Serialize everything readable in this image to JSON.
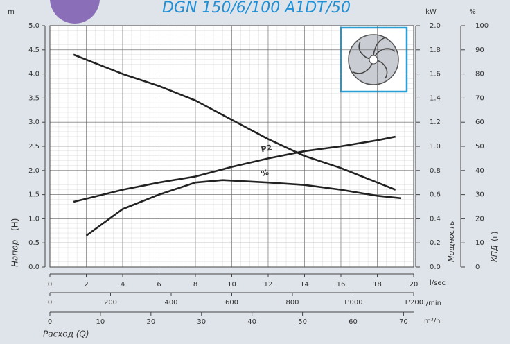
{
  "chart_data": {
    "type": "line",
    "title": "DGN 150/6/100 A1DT/50",
    "y_unit": "m",
    "y2_unit": "kW",
    "y3_unit": "%",
    "x_unit": "l/sec",
    "x2_unit": "l/min",
    "x3_unit": "m³/h",
    "ylabel": "Напор",
    "ylabel_symbol": "(H)",
    "y2label": "Мощность",
    "y3label": "КПД",
    "y3label_symbol": "(г)",
    "xlabel": "Расход (Q)",
    "xlim": [
      0,
      20
    ],
    "xticks": [
      0,
      2,
      4,
      6,
      8,
      10,
      12,
      14,
      16,
      18,
      20
    ],
    "x2lim": [
      0,
      1200
    ],
    "x2ticks": [
      0,
      200,
      400,
      600,
      800,
      {
        "value": 1000,
        "label": "1'000"
      },
      {
        "value": 1200,
        "label": "1'200"
      }
    ],
    "x3lim": [
      0,
      72
    ],
    "x3ticks": [
      0,
      10,
      20,
      30,
      40,
      50,
      60,
      70
    ],
    "ylim": [
      0,
      5
    ],
    "yticks": [
      {
        "value": 0,
        "label": "0.0"
      },
      0.5,
      {
        "value": 1,
        "label": "1.0"
      },
      1.5,
      {
        "value": 2,
        "label": "2.0"
      },
      2.5,
      {
        "value": 3,
        "label": "3.0"
      },
      3.5,
      {
        "value": 4,
        "label": "4.0"
      },
      4.5,
      {
        "value": 5,
        "label": "5.0"
      }
    ],
    "y2lim": [
      0,
      2
    ],
    "y2ticks": [
      {
        "value": 0,
        "label": "0.0"
      },
      0.2,
      0.4,
      0.6,
      0.8,
      {
        "value": 1,
        "label": "1.0"
      },
      1.2,
      1.4,
      1.6,
      1.8,
      {
        "value": 2,
        "label": "2.0"
      }
    ],
    "y3lim": [
      0,
      100
    ],
    "y3ticks": [
      0,
      10,
      20,
      30,
      40,
      50,
      60,
      70,
      80,
      90,
      100
    ],
    "grid": true,
    "series": [
      {
        "color": "#222222",
        "x": [
          1.3,
          4,
          6,
          8,
          10,
          12,
          14,
          16,
          18,
          19
        ],
        "values": [
          4.4,
          4.0,
          3.75,
          3.45,
          3.05,
          2.65,
          2.3,
          2.05,
          1.75,
          1.6
        ]
      },
      {
        "name": "P2",
        "axis": "y2",
        "color": "#222222",
        "x": [
          1.3,
          4,
          6,
          8,
          10,
          12,
          14,
          16,
          18,
          19
        ],
        "values": [
          0.54,
          0.64,
          0.7,
          0.75,
          0.83,
          0.9,
          0.96,
          1.0,
          1.05,
          1.08
        ]
      },
      {
        "name": "%",
        "axis": "y3",
        "color": "#222222",
        "x": [
          2,
          4,
          6,
          8,
          9.5,
          12,
          14,
          16,
          18,
          19.3
        ],
        "values": [
          13,
          24,
          30,
          35,
          36,
          35,
          34,
          32,
          29.5,
          28.5
        ]
      }
    ]
  }
}
